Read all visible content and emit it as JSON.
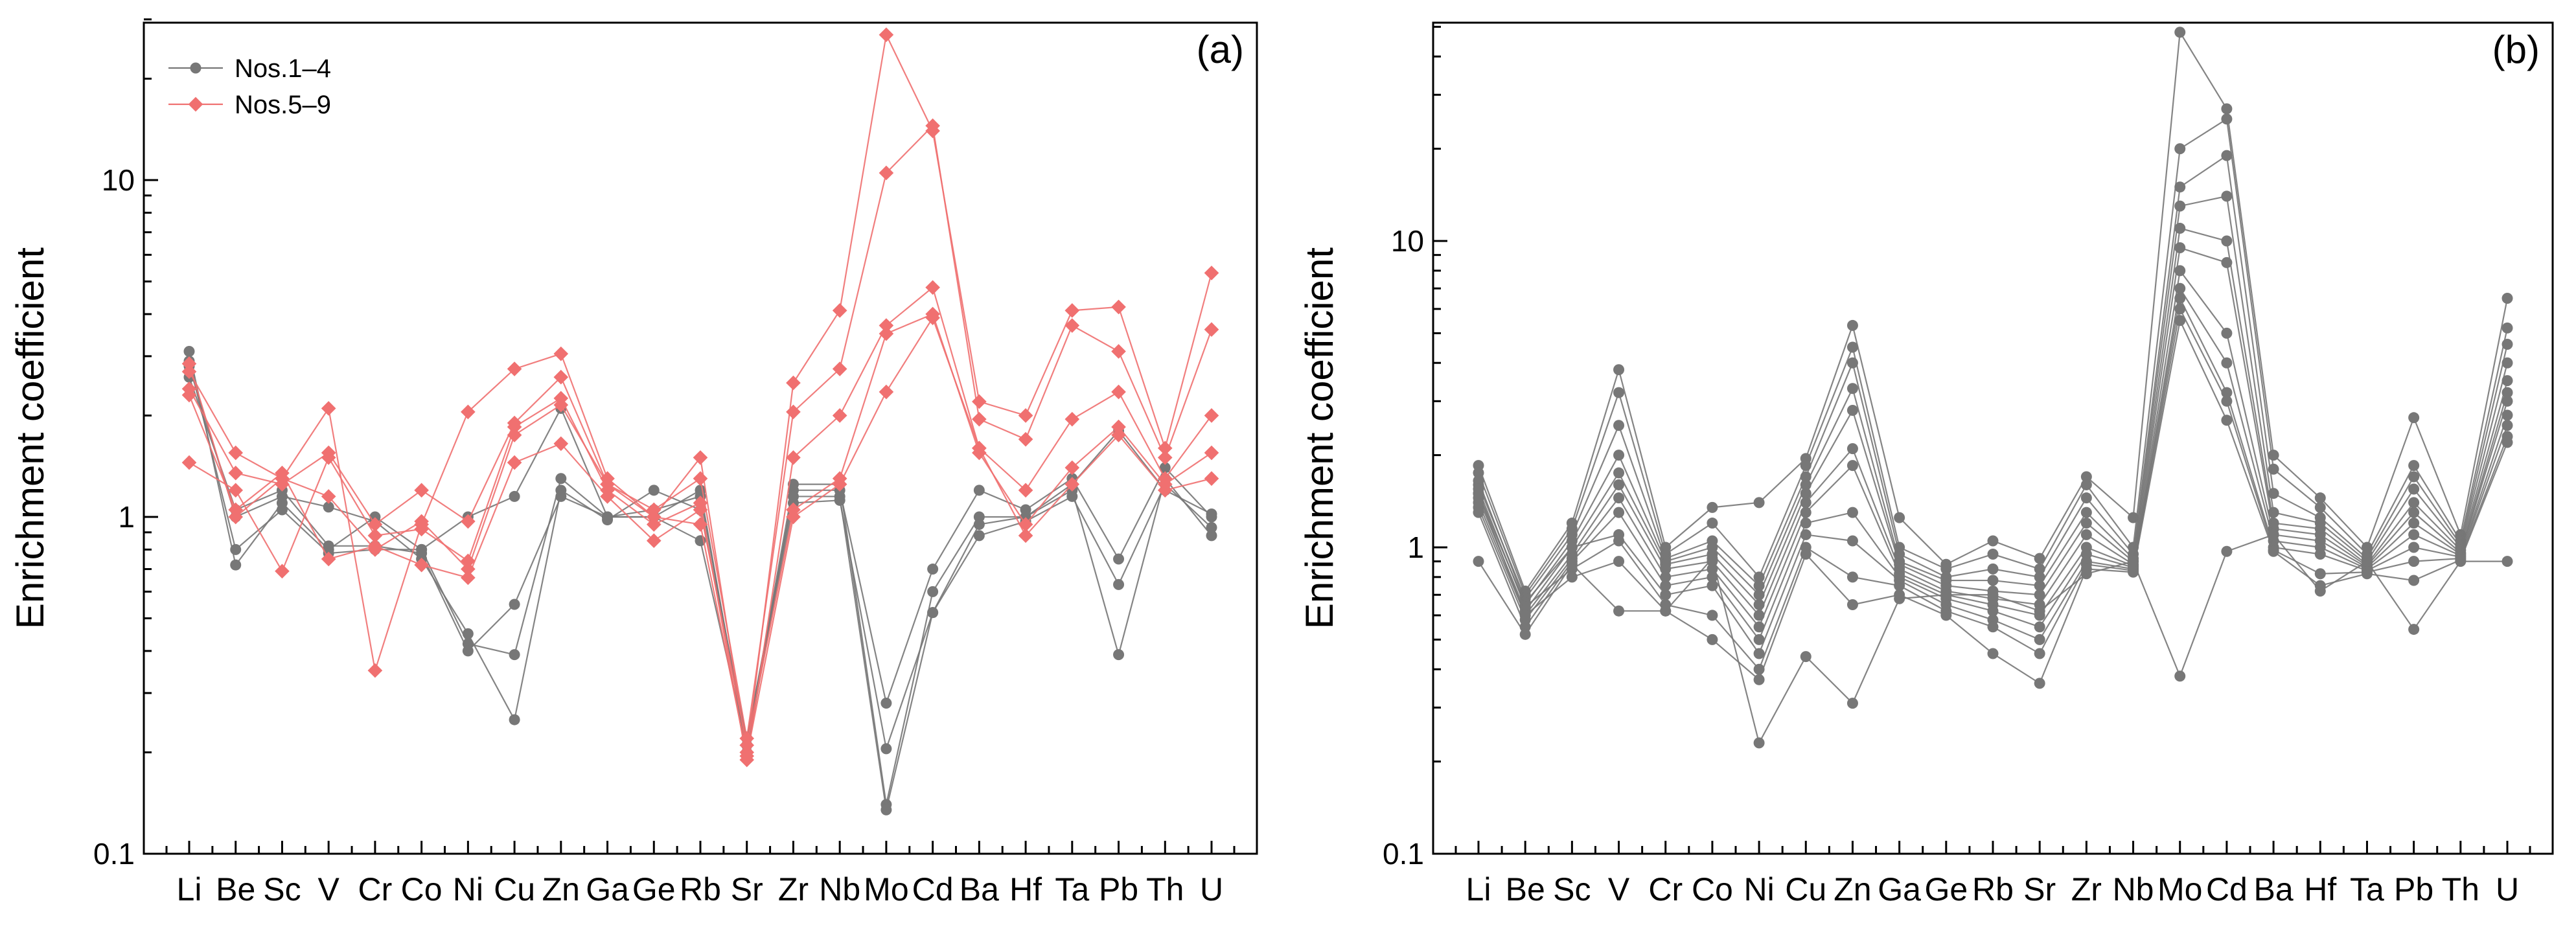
{
  "chart_data": [
    {
      "type": "line",
      "panel_label": "(a)",
      "ylabel": "Enrichment coefficient",
      "yscale": "log",
      "ylim": [
        0.1,
        30
      ],
      "yticks": [
        0.1,
        1,
        10
      ],
      "ytick_labels": [
        "0.1",
        "1",
        "10"
      ],
      "categories": [
        "Li",
        "Be",
        "Sc",
        "V",
        "Cr",
        "Co",
        "Ni",
        "Cu",
        "Zn",
        "Ga",
        "Ge",
        "Rb",
        "Sr",
        "Zr",
        "Nb",
        "Mo",
        "Cd",
        "Ba",
        "Hf",
        "Ta",
        "Pb",
        "Th",
        "U"
      ],
      "legend": [
        {
          "name": "Nos.1–4",
          "color": "#777777",
          "marker": "circle"
        },
        {
          "name": "Nos.5–9",
          "color": "#f07070",
          "marker": "diamond"
        }
      ],
      "legend_position": "top-left",
      "series": [
        {
          "group": "Nos.1–4",
          "color": "#777777",
          "marker": "circle",
          "values": [
            3.1,
            0.72,
            1.1,
            0.8,
            1.0,
            0.8,
            1.0,
            1.15,
            2.1,
            1.0,
            1.0,
            1.2,
            0.2,
            1.2,
            1.2,
            0.28,
            0.7,
            1.2,
            1.05,
            1.3,
            0.75,
            1.4,
            1.0
          ]
        },
        {
          "group": "Nos.1–4",
          "color": "#777777",
          "marker": "circle",
          "values": [
            2.9,
            0.8,
            1.05,
            0.78,
            0.8,
            0.8,
            0.42,
            0.39,
            1.3,
            1.0,
            1.05,
            1.15,
            0.21,
            1.25,
            1.25,
            0.14,
            0.6,
            1.0,
            1.0,
            1.2,
            0.39,
            1.3,
            0.88
          ]
        },
        {
          "group": "Nos.1–4",
          "color": "#777777",
          "marker": "circle",
          "values": [
            2.8,
            1.0,
            1.15,
            1.07,
            0.97,
            0.75,
            0.45,
            0.25,
            1.2,
            0.98,
            1.2,
            1.05,
            0.22,
            1.15,
            1.15,
            0.135,
            0.52,
            0.88,
            0.97,
            1.15,
            0.63,
            1.25,
            0.93
          ]
        },
        {
          "group": "Nos.1–4",
          "color": "#777777",
          "marker": "circle",
          "values": [
            2.6,
            1.05,
            1.2,
            0.82,
            0.82,
            0.78,
            0.4,
            0.55,
            1.15,
            1.0,
            1.0,
            0.85,
            0.21,
            1.1,
            1.12,
            0.205,
            0.52,
            0.95,
            1.0,
            1.25,
            1.8,
            1.2,
            1.02
          ]
        },
        {
          "group": "Nos.5–9",
          "color": "#f07070",
          "marker": "diamond",
          "values": [
            2.7,
            1.55,
            1.3,
            2.1,
            0.35,
            0.95,
            2.05,
            2.75,
            3.05,
            1.3,
            1.0,
            1.5,
            0.2,
            2.5,
            4.1,
            27,
            14,
            2.2,
            2.0,
            4.1,
            4.2,
            1.6,
            5.3
          ]
        },
        {
          "group": "Nos.5–9",
          "color": "#f07070",
          "marker": "diamond",
          "values": [
            2.4,
            1.35,
            1.25,
            1.55,
            0.95,
            1.2,
            0.97,
            1.9,
            2.6,
            1.25,
            1.05,
            1.3,
            0.22,
            2.05,
            2.75,
            10.5,
            14.5,
            1.95,
            1.7,
            3.7,
            3.1,
            1.5,
            3.6
          ]
        },
        {
          "group": "Nos.5–9",
          "color": "#f07070",
          "marker": "diamond",
          "values": [
            1.45,
            1.2,
            0.69,
            1.5,
            0.88,
            0.92,
            0.74,
            1.85,
            2.25,
            1.2,
            0.95,
            1.1,
            0.19,
            1.5,
            2.0,
            3.7,
            4.8,
            1.6,
            1.2,
            1.95,
            2.35,
            1.3,
            2.0
          ]
        },
        {
          "group": "Nos.5–9",
          "color": "#f07070",
          "marker": "diamond",
          "values": [
            2.3,
            1.05,
            1.35,
            0.75,
            0.82,
            0.72,
            0.66,
            1.45,
            1.65,
            1.15,
            0.85,
            1.05,
            0.21,
            1.05,
            1.3,
            3.5,
            4.0,
            1.55,
            0.95,
            1.4,
            1.85,
            1.25,
            1.55
          ]
        },
        {
          "group": "Nos.5–9",
          "color": "#f07070",
          "marker": "diamond",
          "values": [
            2.85,
            1.0,
            1.3,
            1.15,
            0.8,
            0.97,
            0.7,
            1.75,
            2.15,
            1.25,
            1.0,
            0.95,
            0.195,
            1.0,
            1.25,
            2.35,
            3.9,
            1.6,
            0.88,
            1.25,
            1.75,
            1.2,
            1.3
          ]
        }
      ]
    },
    {
      "type": "line",
      "panel_label": "(b)",
      "ylabel": "Enrichment coefficient",
      "yscale": "log",
      "ylim": [
        0.1,
        50
      ],
      "yticks": [
        0.1,
        1,
        10
      ],
      "ytick_labels": [
        "0.1",
        "1",
        "10"
      ],
      "categories": [
        "Li",
        "Be",
        "Sc",
        "V",
        "Cr",
        "Co",
        "Ni",
        "Cu",
        "Zn",
        "Ga",
        "Ge",
        "Rb",
        "Sr",
        "Zr",
        "Nb",
        "Mo",
        "Cd",
        "Ba",
        "Hf",
        "Ta",
        "Pb",
        "Th",
        "U"
      ],
      "series": [
        {
          "color": "#777777",
          "marker": "circle",
          "values": [
            1.85,
            0.72,
            1.2,
            3.8,
            1.0,
            1.35,
            1.4,
            1.95,
            5.3,
            1.25,
            0.88,
            1.05,
            0.92,
            1.7,
            1.25,
            48,
            27,
            2.0,
            1.45,
            1.0,
            2.65,
            1.1,
            6.5
          ]
        },
        {
          "color": "#777777",
          "marker": "circle",
          "values": [
            1.75,
            0.7,
            1.15,
            3.2,
            0.95,
            1.2,
            0.8,
            1.85,
            4.5,
            1.0,
            0.85,
            0.95,
            0.85,
            1.6,
            1.0,
            20,
            25,
            1.8,
            1.35,
            0.95,
            1.85,
            1.05,
            5.2
          ]
        },
        {
          "color": "#777777",
          "marker": "circle",
          "values": [
            1.6,
            0.68,
            1.1,
            2.5,
            0.92,
            1.05,
            0.75,
            1.7,
            4.0,
            0.95,
            0.8,
            0.85,
            0.8,
            1.45,
            0.95,
            15,
            19,
            1.5,
            1.25,
            0.92,
            1.7,
            1.02,
            4.6
          ]
        },
        {
          "color": "#777777",
          "marker": "circle",
          "values": [
            1.5,
            0.65,
            1.05,
            2.0,
            0.9,
            1.0,
            0.7,
            1.6,
            3.3,
            0.9,
            0.78,
            0.78,
            0.75,
            1.3,
            0.92,
            13,
            14,
            1.3,
            1.2,
            0.9,
            1.55,
            1.0,
            4.0
          ]
        },
        {
          "color": "#777777",
          "marker": "circle",
          "values": [
            1.45,
            0.62,
            1.0,
            1.75,
            0.88,
            0.95,
            0.65,
            1.5,
            2.8,
            0.88,
            0.75,
            0.72,
            0.7,
            1.2,
            0.9,
            11,
            10,
            1.2,
            1.15,
            0.88,
            1.4,
            0.98,
            3.5
          ]
        },
        {
          "color": "#777777",
          "marker": "circle",
          "values": [
            1.4,
            0.6,
            0.95,
            1.6,
            0.85,
            0.9,
            0.6,
            1.4,
            2.1,
            0.85,
            0.72,
            0.68,
            0.65,
            1.1,
            0.88,
            9.5,
            8.5,
            1.15,
            1.1,
            0.87,
            1.3,
            0.96,
            3.2
          ]
        },
        {
          "color": "#777777",
          "marker": "circle",
          "values": [
            1.35,
            0.58,
            0.92,
            1.45,
            0.8,
            0.85,
            0.55,
            1.3,
            1.85,
            0.82,
            0.7,
            0.65,
            0.6,
            1.0,
            0.87,
            8.0,
            5.0,
            1.1,
            1.05,
            0.86,
            1.2,
            0.95,
            3.0
          ]
        },
        {
          "color": "#777777",
          "marker": "circle",
          "values": [
            1.3,
            0.55,
            0.9,
            1.3,
            0.75,
            0.8,
            0.5,
            1.2,
            1.3,
            0.8,
            0.68,
            0.62,
            0.55,
            0.95,
            0.86,
            7.0,
            4.0,
            1.05,
            1.0,
            0.85,
            1.1,
            0.94,
            2.7
          ]
        },
        {
          "color": "#777777",
          "marker": "circle",
          "values": [
            1.65,
            0.66,
            1.0,
            1.1,
            0.7,
            0.75,
            0.45,
            1.1,
            1.05,
            0.78,
            0.65,
            0.58,
            0.5,
            0.9,
            0.85,
            6.5,
            3.2,
            1.0,
            0.95,
            0.84,
            1.0,
            0.93,
            2.5
          ]
        },
        {
          "color": "#777777",
          "marker": "circle",
          "values": [
            1.55,
            0.64,
            0.85,
            1.05,
            0.65,
            0.6,
            0.4,
            1.0,
            0.8,
            0.75,
            0.62,
            0.55,
            0.45,
            0.88,
            0.84,
            6.0,
            3.0,
            0.98,
            0.82,
            0.83,
            0.9,
            0.92,
            2.3
          ]
        },
        {
          "color": "#777777",
          "marker": "circle",
          "values": [
            1.5,
            0.6,
            0.8,
            0.9,
            0.62,
            0.5,
            0.37,
            0.95,
            0.65,
            0.7,
            0.6,
            0.45,
            0.36,
            0.85,
            0.83,
            5.5,
            2.6,
            0.97,
            0.75,
            0.82,
            0.78,
            0.91,
            2.2
          ]
        },
        {
          "color": "#777777",
          "marker": "circle",
          "values": [
            0.9,
            0.52,
            0.88,
            0.62,
            0.62,
            0.92,
            0.23,
            0.44,
            0.31,
            0.68,
            0.7,
            0.7,
            0.62,
            0.82,
            0.9,
            0.38,
            0.97,
            1.1,
            0.72,
            0.9,
            0.54,
            0.9,
            0.9
          ]
        }
      ]
    }
  ]
}
